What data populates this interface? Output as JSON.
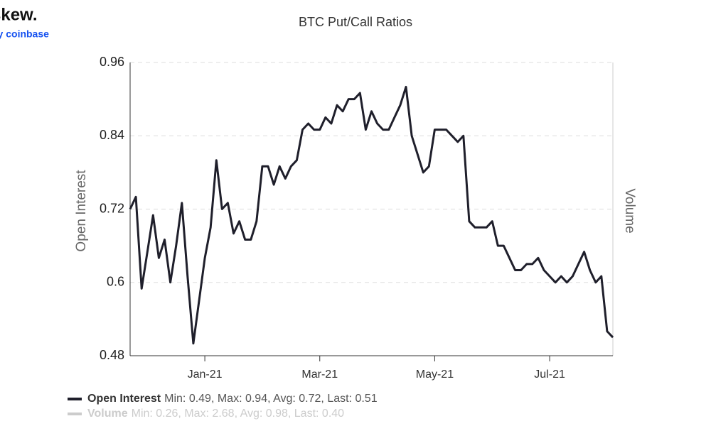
{
  "chart_data": {
    "type": "line",
    "logo": "skew.",
    "logo_sub": "by coinbase",
    "title": "BTC Put/Call Ratios",
    "y_label": "Open Interest",
    "y2_label": "Volume",
    "categories": [
      null,
      null,
      null,
      null,
      null,
      null,
      null,
      null,
      null,
      null,
      null,
      null,
      null,
      "Jan-21",
      null,
      null,
      null,
      null,
      null,
      null,
      null,
      null,
      null,
      null,
      null,
      null,
      null,
      null,
      null,
      null,
      null,
      null,
      null,
      "Mar-21",
      null,
      null,
      null,
      null,
      null,
      null,
      null,
      null,
      null,
      null,
      null,
      null,
      null,
      null,
      null,
      null,
      null,
      null,
      null,
      "May-21",
      null,
      null,
      null,
      null,
      null,
      null,
      null,
      null,
      null,
      null,
      null,
      null,
      null,
      null,
      null,
      null,
      null,
      null,
      null,
      "Jul-21",
      null,
      null,
      null,
      null,
      null,
      null,
      null,
      null,
      null,
      null,
      null
    ],
    "series": [
      {
        "name": "Open Interest",
        "color": "#1f1f2b",
        "stats": "Min: 0.49, Max: 0.94, Avg: 0.72, Last: 0.51",
        "values": [
          0.72,
          0.74,
          0.59,
          0.65,
          0.71,
          0.64,
          0.67,
          0.6,
          0.66,
          0.73,
          0.61,
          0.5,
          0.57,
          0.64,
          0.69,
          0.8,
          0.72,
          0.73,
          0.68,
          0.7,
          0.67,
          0.67,
          0.7,
          0.79,
          0.79,
          0.76,
          0.79,
          0.77,
          0.79,
          0.8,
          0.85,
          0.86,
          0.85,
          0.85,
          0.87,
          0.86,
          0.89,
          0.88,
          0.9,
          0.9,
          0.91,
          0.85,
          0.88,
          0.86,
          0.85,
          0.85,
          0.87,
          0.89,
          0.92,
          0.84,
          0.81,
          0.78,
          0.79,
          0.85,
          0.85,
          0.85,
          0.84,
          0.83,
          0.84,
          0.7,
          0.69,
          0.69,
          0.69,
          0.7,
          0.66,
          0.66,
          0.64,
          0.62,
          0.62,
          0.63,
          0.63,
          0.64,
          0.62,
          0.61,
          0.6,
          0.61,
          0.6,
          0.61,
          0.63,
          0.65,
          0.62,
          0.6,
          0.61,
          0.52,
          0.51
        ]
      }
    ],
    "hidden_series": [
      {
        "name": "Volume",
        "color": "#cccccc",
        "stats": "Min: 0.26, Max: 2.68, Avg: 0.98, Last: 0.40"
      }
    ],
    "ylim": [
      0.48,
      0.96
    ],
    "yticks": [
      0.48,
      0.6,
      0.72,
      0.84,
      0.96
    ],
    "grid": true
  }
}
